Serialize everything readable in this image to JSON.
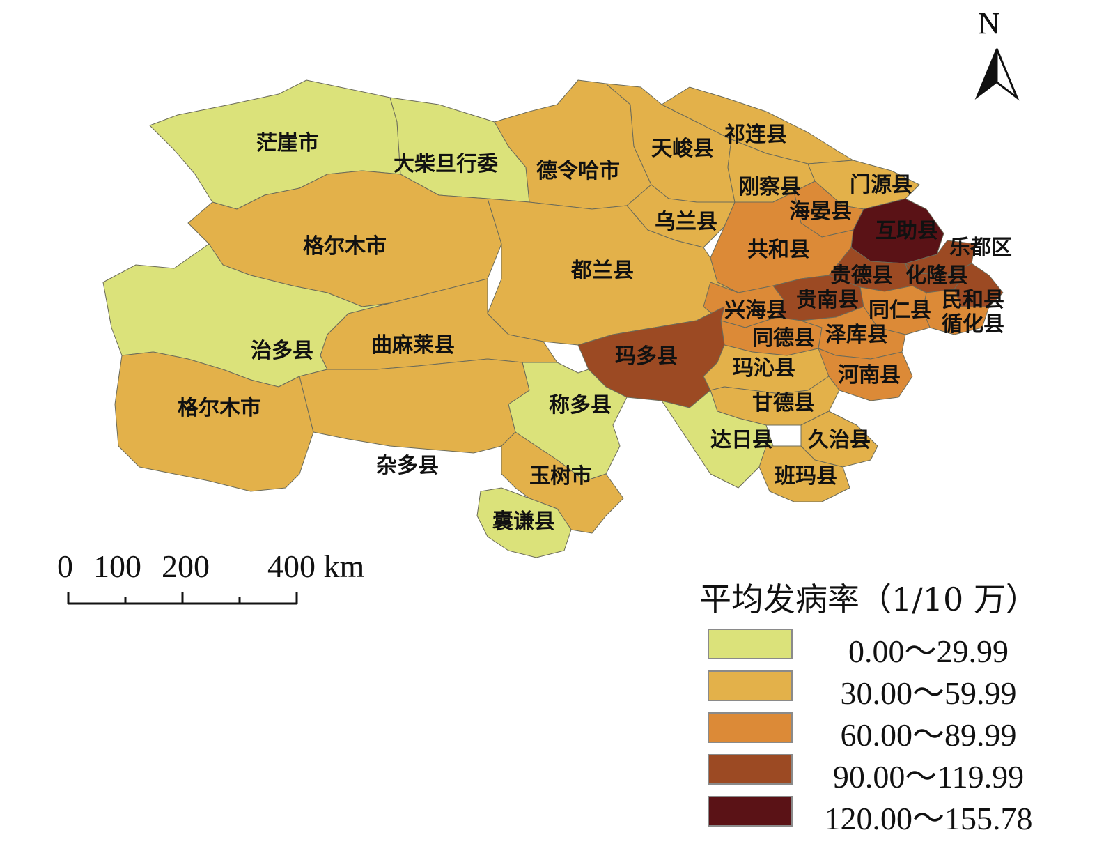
{
  "north_label": "N",
  "scale": {
    "ticks": [
      "0",
      "100",
      "200",
      "400 km"
    ]
  },
  "legend": {
    "title": "平均发病率（1/10 万）",
    "classes": [
      {
        "range": "0.00～29.99",
        "color": "#dbe27a"
      },
      {
        "range": "30.00～59.99",
        "color": "#e3b14a"
      },
      {
        "range": "60.00～89.99",
        "color": "#dc8a37"
      },
      {
        "range": "90.00～119.99",
        "color": "#9c4a23"
      },
      {
        "range": "120.00～155.78",
        "color": "#5a1216"
      }
    ]
  },
  "regions": [
    {
      "name": "茫崖市",
      "class": 0
    },
    {
      "name": "大柴旦行委",
      "class": 0
    },
    {
      "name": "德令哈市",
      "class": 1
    },
    {
      "name": "天峻县",
      "class": 1
    },
    {
      "name": "祁连县",
      "class": 1
    },
    {
      "name": "刚察县",
      "class": 1
    },
    {
      "name": "门源县",
      "class": 1
    },
    {
      "name": "海晏县",
      "class": 2
    },
    {
      "name": "互助县",
      "class": 4
    },
    {
      "name": "乐都区",
      "class": 3
    },
    {
      "name": "乌兰县",
      "class": 1
    },
    {
      "name": "共和县",
      "class": 2
    },
    {
      "name": "格尔木市",
      "class": 1
    },
    {
      "name": "都兰县",
      "class": 1
    },
    {
      "name": "贵德县",
      "class": 3
    },
    {
      "name": "化隆县",
      "class": 3
    },
    {
      "name": "民和县",
      "class": 3
    },
    {
      "name": "循化县",
      "class": 2
    },
    {
      "name": "兴海县",
      "class": 2
    },
    {
      "name": "贵南县",
      "class": 3
    },
    {
      "name": "同仁县",
      "class": 2
    },
    {
      "name": "同德县",
      "class": 2
    },
    {
      "name": "泽库县",
      "class": 2
    },
    {
      "name": "治多县",
      "class": 0
    },
    {
      "name": "曲麻莱县",
      "class": 1
    },
    {
      "name": "玛多县",
      "class": 3
    },
    {
      "name": "玛沁县",
      "class": 1
    },
    {
      "name": "河南县",
      "class": 2
    },
    {
      "name": "称多县",
      "class": 0
    },
    {
      "name": "甘德县",
      "class": 1
    },
    {
      "name": "格尔木市",
      "class": 1
    },
    {
      "name": "达日县",
      "class": 0
    },
    {
      "name": "久治县",
      "class": 1
    },
    {
      "name": "杂多县",
      "class": 1
    },
    {
      "name": "玉树市",
      "class": 1
    },
    {
      "name": "班玛县",
      "class": 1
    },
    {
      "name": "囊谦县",
      "class": 0
    }
  ]
}
